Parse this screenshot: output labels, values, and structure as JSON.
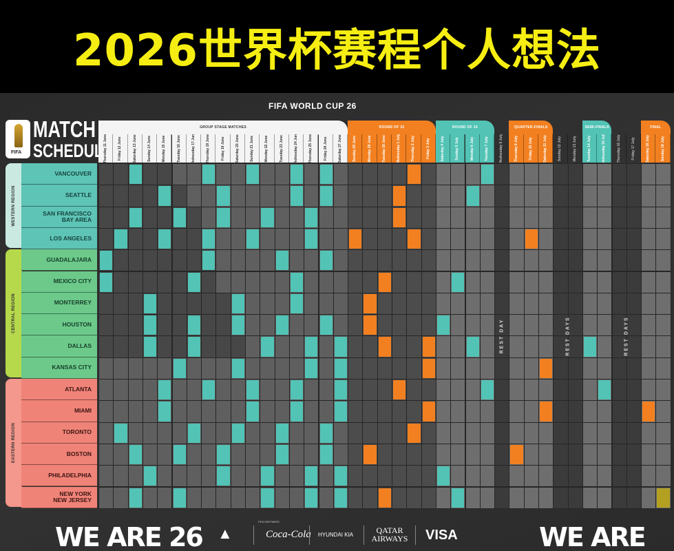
{
  "banner_title": "2026世界杯赛程个人想法",
  "poster": {
    "header": "FIFA WORLD CUP 26",
    "logo_line1": "MATCH",
    "logo_line2": "SCHEDULE",
    "logo_small": "FIFA"
  },
  "colors": {
    "teal": "#52c3b5",
    "orange": "#f28020",
    "final_gold": "#b3a021",
    "western": "#5ec4b6",
    "central": "#6cc98a",
    "eastern": "#f08378"
  },
  "phases": [
    {
      "label": "GROUP STAGE MATCHES",
      "start": 0,
      "end": 16,
      "style": "white"
    },
    {
      "label": "ROUND OF 32",
      "start": 17,
      "end": 22,
      "style": "orange"
    },
    {
      "label": "ROUND OF 16",
      "start": 23,
      "end": 26,
      "style": "teal"
    },
    {
      "label": "QUARTER-FINALS",
      "start": 28,
      "end": 30,
      "style": "orange"
    },
    {
      "label": "SEMI-FINALS",
      "start": 33,
      "end": 34,
      "style": "teal"
    },
    {
      "label": "FINAL",
      "start": 37,
      "end": 38,
      "style": "orange"
    }
  ],
  "dates": [
    "Thursday 11 June",
    "Friday 12 June",
    "Saturday 13 June",
    "Sunday 14 June",
    "Monday 15 June",
    "Tuesday 16 June",
    "Wednesday 17 June",
    "Thursday 18 June",
    "Friday 19 June",
    "Saturday 20 June",
    "Sunday 21 June",
    "Monday 22 June",
    "Tuesday 23 June",
    "Wednesday 24 June",
    "Thursday 25 June",
    "Friday 26 June",
    "Saturday 27 June",
    "Sunday 28 June",
    "Monday 29 June",
    "Tuesday 30 June",
    "Wednesday 1 July",
    "Thursday 2 July",
    "Friday 3 July",
    "Saturday 4 July",
    "Sunday 5 July",
    "Monday 6 July",
    "Tuesday 7 July",
    "Wednesday 8 July",
    "Thursday 9 July",
    "Friday 10 July",
    "Saturday 11 July",
    "Sunday 12 July",
    "Monday 13 July",
    "Tuesday 14 July",
    "Wednesday 15 July",
    "Thursday 16 July",
    "Friday 17 July",
    "Saturday 18 July",
    "Sunday 19 July"
  ],
  "rest_labels": [
    {
      "text": "REST DAY",
      "days": [
        27
      ]
    },
    {
      "text": "REST DAYS",
      "days": [
        31,
        32
      ]
    },
    {
      "text": "REST DAYS",
      "days": [
        35,
        36
      ]
    }
  ],
  "regions": [
    {
      "label": "WESTERN REGION",
      "color": "#c9e9e1",
      "city_color": "#5ec4b6",
      "text_color": "#16443f",
      "cities": [
        {
          "name": "VANCOUVER",
          "group": [
            2,
            7,
            10,
            13,
            15
          ],
          "ko_orange": [
            21
          ],
          "ko_teal": [
            26
          ]
        },
        {
          "name": "SEATTLE",
          "group": [
            4,
            8,
            13,
            15
          ],
          "ko_orange": [
            20
          ],
          "ko_teal": [
            25
          ]
        },
        {
          "name": "SAN FRANCISCO\nBAY AREA",
          "group": [
            2,
            5,
            8,
            11,
            14
          ],
          "ko_orange": [
            20
          ],
          "ko_teal": []
        },
        {
          "name": "LOS ANGELES",
          "group": [
            1,
            4,
            7,
            10,
            14
          ],
          "ko_orange": [
            17,
            21,
            29
          ],
          "ko_teal": []
        }
      ]
    },
    {
      "label": "CENTRAL REGION",
      "color": "#b6d84b",
      "city_color": "#6cc98a",
      "text_color": "#17402a",
      "cities": [
        {
          "name": "GUADALAJARA",
          "group": [
            0,
            7,
            12,
            15
          ],
          "ko_orange": [],
          "ko_teal": []
        },
        {
          "name": "MEXICO CITY",
          "group": [
            0,
            6,
            13
          ],
          "ko_orange": [
            19
          ],
          "ko_teal": [
            24
          ]
        },
        {
          "name": "MONTERREY",
          "group": [
            3,
            9,
            13
          ],
          "ko_orange": [
            18
          ],
          "ko_teal": []
        },
        {
          "name": "HOUSTON",
          "group": [
            3,
            6,
            9,
            12,
            15
          ],
          "ko_orange": [
            18
          ],
          "ko_teal": [
            23
          ]
        },
        {
          "name": "DALLAS",
          "group": [
            3,
            6,
            11,
            14,
            16
          ],
          "ko_orange": [
            19,
            22
          ],
          "ko_teal": [
            25,
            33
          ]
        },
        {
          "name": "KANSAS CITY",
          "group": [
            5,
            9,
            14,
            16
          ],
          "ko_orange": [
            22,
            30
          ],
          "ko_teal": []
        }
      ]
    },
    {
      "label": "EASTERN REGION",
      "color": "#f4978c",
      "city_color": "#f08378",
      "text_color": "#3a1512",
      "cities": [
        {
          "name": "ATLANTA",
          "group": [
            4,
            7,
            10,
            13,
            16
          ],
          "ko_orange": [
            20
          ],
          "ko_teal": [
            26,
            34
          ]
        },
        {
          "name": "MIAMI",
          "group": [
            4,
            10,
            13,
            16
          ],
          "ko_orange": [
            22,
            30,
            37
          ],
          "ko_teal": []
        },
        {
          "name": "TORONTO",
          "group": [
            1,
            6,
            9,
            12,
            15
          ],
          "ko_orange": [
            21
          ],
          "ko_teal": []
        },
        {
          "name": "BOSTON",
          "group": [
            2,
            5,
            8,
            12,
            15
          ],
          "ko_orange": [
            18,
            28
          ],
          "ko_teal": []
        },
        {
          "name": "PHILADELPHIA",
          "group": [
            3,
            8,
            11,
            14,
            16
          ],
          "ko_orange": [],
          "ko_teal": [
            23
          ]
        },
        {
          "name": "NEW YORK\nNEW JERSEY",
          "group": [
            2,
            5,
            11,
            14,
            16
          ],
          "ko_orange": [
            19
          ],
          "ko_teal": [
            24
          ],
          "final": [
            38
          ]
        }
      ]
    }
  ],
  "footer": {
    "partners_label": "FIFA PARTNERS",
    "sponsors": [
      "adidas",
      "Coca-Cola",
      "HYUNDAI KIA",
      "QATAR AIRWAYS",
      "VISA"
    ],
    "campaign_logo": "WE ARE 26"
  }
}
